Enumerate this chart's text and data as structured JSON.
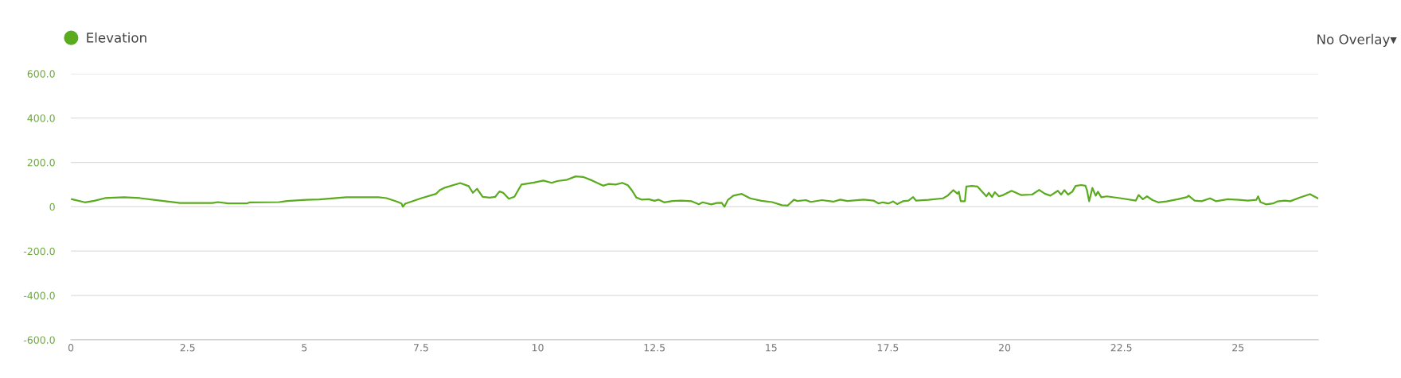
{
  "chart_data": {
    "type": "line",
    "annotations": [
      "No Overlay▾"
    ],
    "series": [
      {
        "name": "Elevation",
        "color": "#5aab1e",
        "x": [
          0.02,
          0.3,
          0.5,
          0.73,
          1.14,
          1.48,
          1.88,
          2.34,
          3.03,
          3.15,
          3.37,
          3.77,
          3.83,
          4.46,
          4.63,
          5.04,
          5.32,
          5.9,
          6.59,
          6.76,
          6.99,
          7.08,
          7.11,
          7.16,
          7.51,
          7.82,
          7.9,
          8.02,
          8.34,
          8.52,
          8.61,
          8.7,
          8.82,
          8.97,
          9.09,
          9.18,
          9.26,
          9.38,
          9.5,
          9.65,
          9.92,
          10.12,
          10.3,
          10.42,
          10.63,
          10.81,
          10.98,
          11.16,
          11.4,
          11.52,
          11.67,
          11.81,
          11.93,
          12.02,
          12.11,
          12.23,
          12.38,
          12.5,
          12.59,
          12.71,
          12.88,
          13.07,
          13.3,
          13.45,
          13.53,
          13.72,
          13.83,
          13.94,
          14.0,
          14.07,
          14.19,
          14.37,
          14.55,
          14.79,
          15.02,
          15.23,
          15.35,
          15.49,
          15.56,
          15.74,
          15.85,
          16.09,
          16.33,
          16.48,
          16.63,
          16.98,
          17.19,
          17.3,
          17.39,
          17.51,
          17.61,
          17.7,
          17.82,
          17.94,
          18.04,
          18.1,
          18.37,
          18.68,
          18.78,
          18.9,
          18.99,
          19.02,
          19.06,
          19.15,
          19.18,
          19.3,
          19.42,
          19.52,
          19.61,
          19.66,
          19.73,
          19.79,
          19.88,
          19.97,
          20.15,
          20.35,
          20.59,
          20.74,
          20.86,
          20.98,
          21.14,
          21.21,
          21.28,
          21.36,
          21.45,
          21.52,
          21.64,
          21.73,
          21.76,
          21.81,
          21.88,
          21.95,
          22.0,
          22.07,
          22.19,
          22.5,
          22.81,
          22.87,
          22.96,
          23.05,
          23.17,
          23.29,
          23.47,
          23.71,
          23.91,
          23.94,
          24.07,
          24.22,
          24.4,
          24.53,
          24.78,
          25.02,
          25.21,
          25.39,
          25.43,
          25.48,
          25.6,
          25.75,
          25.84,
          26.0,
          26.12,
          26.3,
          26.54,
          26.71
        ],
        "values": [
          34,
          20,
          27,
          39,
          43,
          39,
          29,
          17,
          17,
          21,
          15,
          15,
          20,
          21,
          26,
          31,
          33,
          43,
          43,
          39,
          23,
          15,
          0,
          14,
          39,
          58,
          75,
          87,
          107,
          93,
          63,
          81,
          45,
          41,
          45,
          69,
          63,
          36,
          45,
          100,
          109,
          118,
          108,
          116,
          122,
          137,
          134,
          119,
          95,
          103,
          100,
          108,
          97,
          73,
          42,
          32,
          34,
          27,
          32,
          20,
          26,
          28,
          25,
          11,
          20,
          11,
          17,
          18,
          0,
          30,
          50,
          58,
          38,
          27,
          21,
          7,
          5,
          32,
          26,
          30,
          22,
          30,
          23,
          32,
          26,
          32,
          28,
          15,
          20,
          15,
          24,
          12,
          25,
          28,
          44,
          28,
          31,
          38,
          50,
          75,
          59,
          68,
          25,
          25,
          91,
          94,
          91,
          68,
          47,
          63,
          44,
          66,
          47,
          53,
          72,
          53,
          55,
          76,
          59,
          50,
          72,
          55,
          75,
          55,
          68,
          94,
          98,
          95,
          78,
          25,
          85,
          50,
          68,
          43,
          47,
          38,
          28,
          53,
          34,
          47,
          30,
          20,
          24,
          34,
          44,
          50,
          28,
          25,
          38,
          25,
          34,
          31,
          28,
          31,
          47,
          21,
          11,
          15,
          24,
          28,
          25,
          40,
          57,
          38
        ]
      }
    ],
    "xlim": [
      0,
      26.72
    ],
    "xticks": [
      0,
      2.5,
      5,
      7.5,
      10,
      12.5,
      15,
      17.5,
      20,
      22.5,
      25
    ],
    "ylim": [
      -600,
      600
    ],
    "yticks": [
      {
        "value": -600,
        "label": "-600.0"
      },
      {
        "value": -400,
        "label": "-400.0"
      },
      {
        "value": -200,
        "label": "-200.0"
      },
      {
        "value": 0,
        "label": "0"
      },
      {
        "value": 200,
        "label": "200.0"
      },
      {
        "value": 400,
        "label": "400.0"
      },
      {
        "value": 600,
        "label": "600.0"
      }
    ],
    "grid": "y",
    "legend": "top left",
    "marker": "none",
    "line_style": "solid"
  }
}
